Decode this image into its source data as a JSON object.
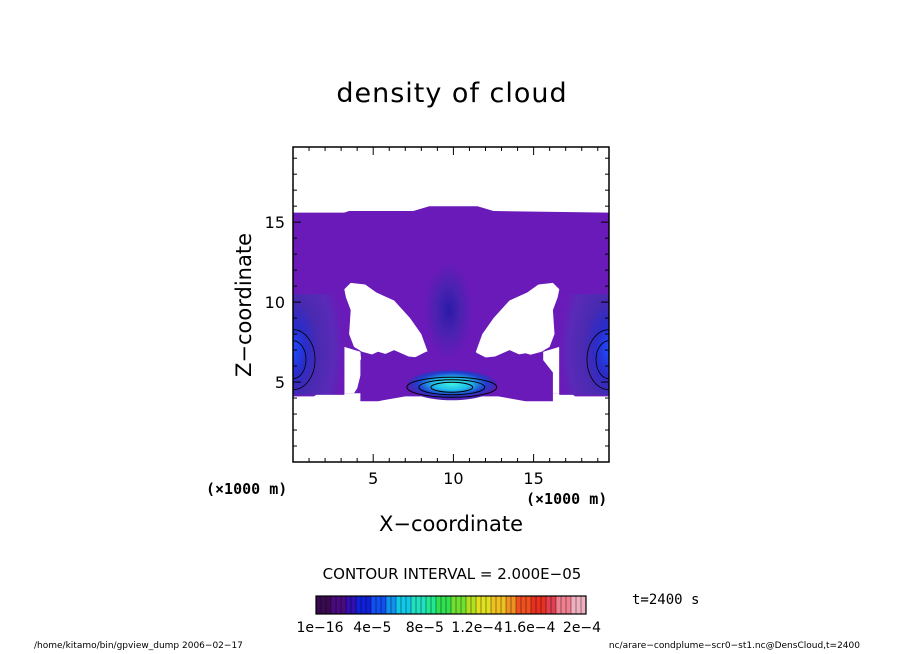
{
  "chart_data": {
    "type": "heatmap",
    "title": "density of cloud",
    "xlabel": "X−coordinate",
    "ylabel": "Z−coordinate",
    "x_unit_labels": [
      "(×1000 m)",
      "(×1000 m)"
    ],
    "xlim": [
      0,
      19.7
    ],
    "ylim": [
      0,
      19.7
    ],
    "x_ticks": [
      5,
      10,
      15
    ],
    "y_ticks": [
      5,
      10,
      15
    ],
    "contour_interval_text": "CONTOUR INTERVAL = 2.000E−05",
    "colorbar": {
      "labels": [
        "1e−16",
        "4e−5",
        "8e−5",
        "1.2e−4",
        "1.6e−4",
        "2e−4"
      ],
      "range": [
        1e-16,
        0.0002
      ]
    },
    "time_label": "t=2400 s",
    "cloud_regions": [
      {
        "name": "upper-layer",
        "x": [
          0,
          19.7
        ],
        "z": [
          10.2,
          15.6
        ],
        "level": "low"
      },
      {
        "name": "left-edge-core",
        "x": [
          0,
          3.2
        ],
        "z": [
          4.2,
          10.5
        ],
        "level": "medium",
        "peak_z": 6.4
      },
      {
        "name": "right-edge-core",
        "x": [
          16.6,
          19.7
        ],
        "z": [
          4.2,
          10.5
        ],
        "level": "medium",
        "peak_z": 6.4
      },
      {
        "name": "central-column",
        "x": [
          8.2,
          11.2
        ],
        "z": [
          6.5,
          12.5
        ],
        "level": "medium-low",
        "peak_z": 8.5
      },
      {
        "name": "lower-band",
        "x": [
          4.2,
          16.2
        ],
        "z": [
          3.8,
          7.2
        ],
        "level": "low"
      },
      {
        "name": "central-lower-core",
        "x": [
          6.9,
          12.5
        ],
        "z": [
          3.9,
          5.4
        ],
        "level": "high",
        "peak_x": 9.9,
        "peak_z": 4.8
      }
    ]
  },
  "footer": {
    "left": "/home/kitamo/bin/gpview_dump  2006−02−17",
    "right": "nc/arare−condplume−scr0−st1.nc@DensCloud,t=2400"
  }
}
